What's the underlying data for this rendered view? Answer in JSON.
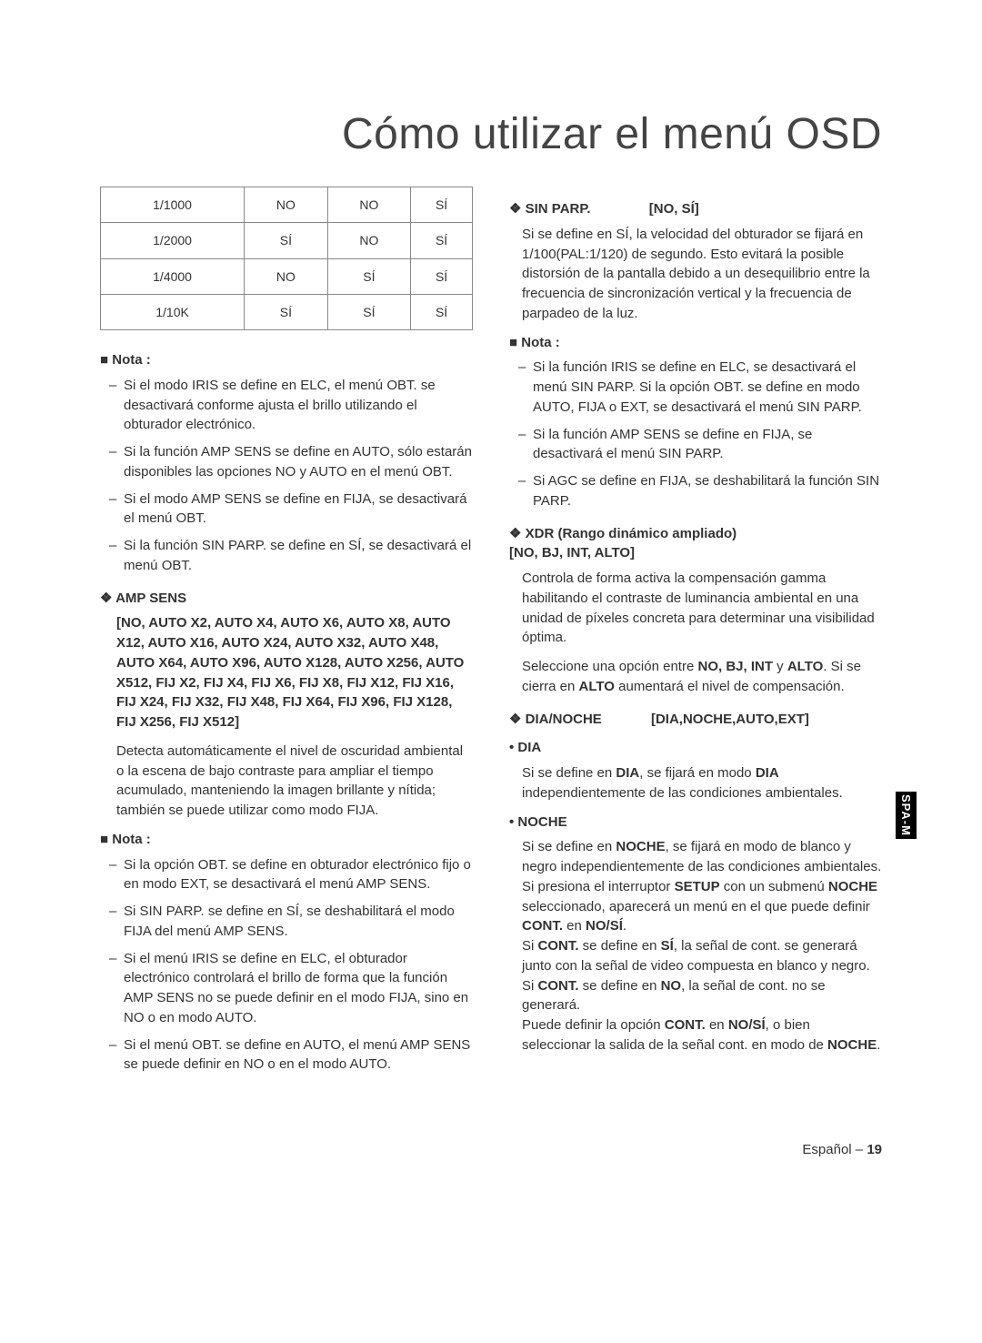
{
  "title": "Cómo utilizar el menú OSD",
  "table_rows": [
    [
      "1/1000",
      "NO",
      "NO",
      "SÍ"
    ],
    [
      "1/2000",
      "SÍ",
      "NO",
      "SÍ"
    ],
    [
      "1/4000",
      "NO",
      "SÍ",
      "SÍ"
    ],
    [
      "1/10K",
      "SÍ",
      "SÍ",
      "SÍ"
    ]
  ],
  "nota1_label": "Nota :",
  "nota1": [
    "Si el modo IRIS se define en ELC, el menú OBT. se desactivará conforme ajusta el brillo utilizando el obturador electrónico.",
    "Si la función AMP SENS se define en AUTO, sólo estarán disponibles las opciones NO y AUTO en el menú OBT.",
    "Si el modo AMP SENS se define en FIJA, se desactivará el menú OBT.",
    "Si la función SIN PARP. se define en SÍ, se desactivará el menú OBT."
  ],
  "ampsens_head": "AMP SENS",
  "ampsens_opts": "[NO, AUTO X2, AUTO X4, AUTO X6, AUTO X8, AUTO X12, AUTO X16, AUTO X24, AUTO X32, AUTO X48, AUTO X64, AUTO X96, AUTO X128, AUTO X256, AUTO X512, FIJ X2, FIJ X4, FIJ X6, FIJ X8, FIJ X12, FIJ X16, FIJ X24, FIJ X32, FIJ X48, FIJ X64, FIJ X96, FIJ X128, FIJ X256, FIJ X512]",
  "ampsens_body": "Detecta automáticamente el nivel de oscuridad ambiental o la escena de bajo contraste para ampliar el tiempo acumulado, manteniendo la imagen brillante y nítida; también se puede utilizar como modo FIJA.",
  "nota2_label": "Nota :",
  "nota2": [
    "Si la opción OBT. se define en obturador electrónico fijo o en modo EXT, se desactivará el menú AMP SENS.",
    "Si SIN PARP. se define en SÍ, se deshabilitará el modo FIJA del menú AMP SENS.",
    "Si el menú IRIS se define en ELC, el obturador electrónico controlará el brillo de forma que la función AMP SENS no se puede definir en el modo FIJA, sino en NO o en modo AUTO.",
    "Si el menú OBT. se define en AUTO, el menú AMP SENS se puede definir en NO o en el modo AUTO."
  ],
  "sinparp_head": "SIN PARP.",
  "sinparp_opts": "[NO, SÍ]",
  "sinparp_body": "Si se define en SÍ, la velocidad del obturador se fijará en 1/100(PAL:1/120) de segundo. Esto evitará la posible distorsión de la pantalla debido a un desequilibrio entre la frecuencia de sincronización vertical y la frecuencia de parpadeo de la luz.",
  "nota3_label": "Nota :",
  "nota3": [
    "Si la función IRIS se define en ELC, se desactivará el menú SIN PARP. Si la opción OBT. se define en modo AUTO, FIJA o EXT, se desactivará el menú SIN PARP.",
    "Si la función AMP SENS se define en FIJA, se desactivará el menú SIN PARP.",
    "Si AGC se define en FIJA, se deshabilitará la función SIN PARP."
  ],
  "xdr_head": "XDR (Rango dinámico ampliado)",
  "xdr_opts": "[NO, BJ, INT, ALTO]",
  "xdr_body1": "Controla de forma activa la compensación gamma habilitando el contraste de luminancia ambiental en una unidad de píxeles concreta para determinar una visibilidad óptima.",
  "xdr_body2_a": "Seleccione una opción entre ",
  "xdr_body2_b": "NO, BJ, INT",
  "xdr_body2_c": " y ",
  "xdr_body2_d": "ALTO",
  "xdr_body2_e": ". Si se cierra en ",
  "xdr_body2_f": "ALTO",
  "xdr_body2_g": " aumentará el nivel de compensación.",
  "dianoche_head": "DIA/NOCHE",
  "dianoche_opts": "[DIA,NOCHE,AUTO,EXT]",
  "dia_head": "DIA",
  "dia_body_a": "Si se define en ",
  "dia_body_b": "DIA",
  "dia_body_c": ", se fijará en modo ",
  "dia_body_d": "DIA",
  "dia_body_e": " independientemente de las condiciones ambientales.",
  "noche_head": "NOCHE",
  "noche_p1_a": "Si se define en ",
  "noche_p1_b": "NOCHE",
  "noche_p1_c": ", se fijará en modo de blanco y negro independientemente de las condiciones ambientales.",
  "noche_p2_a": "Si presiona el interruptor ",
  "noche_p2_b": "SETUP",
  "noche_p2_c": " con un submenú ",
  "noche_p2_d": "NOCHE",
  "noche_p2_e": " seleccionado, aparecerá un menú en el que puede definir ",
  "noche_p2_f": "CONT.",
  "noche_p2_g": " en ",
  "noche_p2_h": "NO/SÍ",
  "noche_p2_i": ".",
  "noche_p3_a": "Si ",
  "noche_p3_b": "CONT.",
  "noche_p3_c": " se define en ",
  "noche_p3_d": "SÍ",
  "noche_p3_e": ", la señal de cont. se generará junto con la señal de video compuesta en blanco y negro. Si ",
  "noche_p3_f": "CONT.",
  "noche_p3_g": " se define en ",
  "noche_p3_h": "NO",
  "noche_p3_i": ", la señal de cont. no se generará.",
  "noche_p4_a": "Puede definir la opción ",
  "noche_p4_b": "CONT.",
  "noche_p4_c": " en ",
  "noche_p4_d": "NO/SÍ",
  "noche_p4_e": ", o bien seleccionar la salida de la señal cont. en modo de ",
  "noche_p4_f": "NOCHE",
  "noche_p4_g": ".",
  "side_tab": "SPA-M",
  "footer_a": "Español – ",
  "footer_b": "19"
}
